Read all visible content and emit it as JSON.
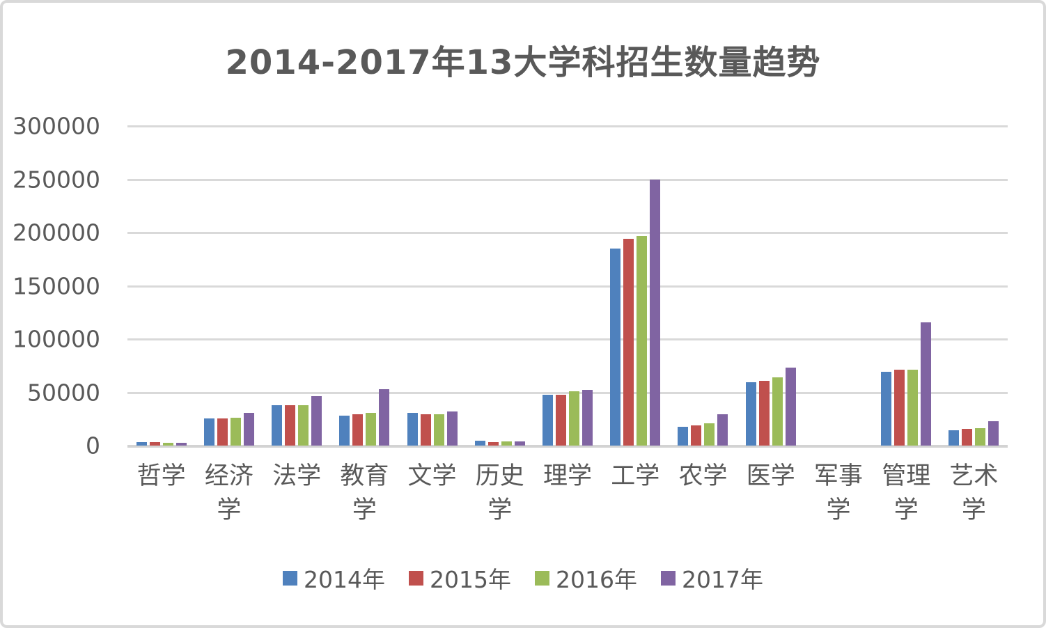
{
  "chart_data": {
    "type": "bar",
    "title": "2014-2017年13大学科招生数量趋势",
    "categories": [
      "哲学",
      "经济学",
      "法学",
      "教育学",
      "文学",
      "历史学",
      "理学",
      "工学",
      "农学",
      "医学",
      "军事学",
      "管理学",
      "艺术学"
    ],
    "series": [
      {
        "name": "2014年",
        "color": "#4F81BD",
        "values": [
          3500,
          25500,
          38000,
          28000,
          30500,
          4800,
          48000,
          185000,
          18000,
          59500,
          0,
          69000,
          14500
        ]
      },
      {
        "name": "2015年",
        "color": "#C0504D",
        "values": [
          3500,
          25700,
          38000,
          29200,
          29500,
          3600,
          48000,
          194000,
          19200,
          61000,
          0,
          71000,
          15500
        ]
      },
      {
        "name": "2016年",
        "color": "#9BBB59",
        "values": [
          2500,
          26500,
          38000,
          30500,
          29500,
          3900,
          51000,
          196500,
          20700,
          64000,
          0,
          71000,
          16500
        ]
      },
      {
        "name": "2017年",
        "color": "#8064A2",
        "values": [
          2800,
          31000,
          46500,
          53000,
          32000,
          4000,
          52000,
          250000,
          29500,
          73500,
          0,
          115500,
          23000
        ]
      }
    ],
    "xlabel": "",
    "ylabel": "",
    "ylim": [
      0,
      300000
    ],
    "yticks": [
      0,
      50000,
      100000,
      150000,
      200000,
      250000,
      300000
    ],
    "grid": true,
    "legend_position": "bottom",
    "colors": {
      "text": "#595959",
      "gridline": "#D9D9D9",
      "axis_line": "#D3D3D3",
      "background": "#FFFFFF",
      "frame_border": "#D9D9D9"
    }
  }
}
